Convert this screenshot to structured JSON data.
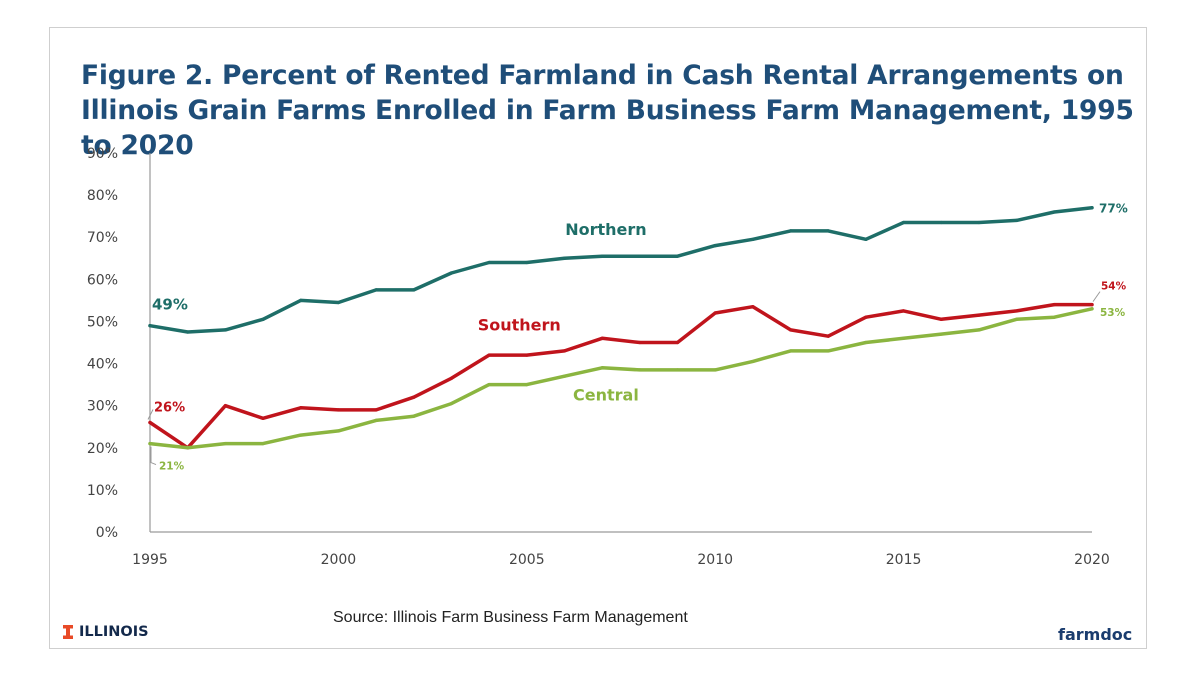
{
  "title": "Figure 2.  Percent of Rented Farmland in Cash Rental Arrangements on Illinois Grain Farms Enrolled in Farm Business Farm Management, 1995 to 2020",
  "source": "Source:  Illinois Farm Business Farm Management",
  "brand_left": "ILLINOIS",
  "brand_right": "farmdoc",
  "colors": {
    "northern": "#1e6e68",
    "southern": "#c0141c",
    "central": "#8bb540",
    "title": "#1f4e79",
    "illinois_orange": "#e84a27"
  },
  "chart_data": {
    "type": "line",
    "title": "Figure 2.  Percent of Rented Farmland in Cash Rental Arrangements on Illinois Grain Farms Enrolled in Farm Business Farm Management, 1995 to 2020",
    "xlabel": "",
    "ylabel": "",
    "x": [
      1995,
      1996,
      1997,
      1998,
      1999,
      2000,
      2001,
      2002,
      2003,
      2004,
      2005,
      2006,
      2007,
      2008,
      2009,
      2010,
      2011,
      2012,
      2013,
      2014,
      2015,
      2016,
      2017,
      2018,
      2019,
      2020
    ],
    "xlim": [
      1995,
      2020
    ],
    "ylim": [
      0,
      90
    ],
    "x_ticks": [
      "1995",
      "2000",
      "2005",
      "2010",
      "2015",
      "2020"
    ],
    "y_ticks": [
      "0%",
      "10%",
      "20%",
      "30%",
      "40%",
      "50%",
      "60%",
      "70%",
      "80%",
      "90%"
    ],
    "grid": false,
    "series": [
      {
        "name": "Northern",
        "color": "#1e6e68",
        "values": [
          49,
          47.5,
          48,
          50.5,
          55,
          54.5,
          57.5,
          57.5,
          61.5,
          64,
          64,
          65,
          65.5,
          65.5,
          65.5,
          68,
          69.5,
          71.5,
          71.5,
          69.5,
          73.5,
          73.5,
          73.5,
          74,
          76,
          77
        ],
        "label_start": "49%",
        "label_end": "77%"
      },
      {
        "name": "Southern",
        "color": "#c0141c",
        "values": [
          26,
          20,
          30,
          27,
          29.5,
          29,
          29,
          32,
          36.5,
          42,
          42,
          43,
          46,
          45,
          45,
          52,
          53.5,
          48,
          46.5,
          51,
          52.5,
          50.5,
          51.5,
          52.5,
          54,
          54
        ],
        "label_start": "26%",
        "label_end": "54%"
      },
      {
        "name": "Central",
        "color": "#8bb540",
        "values": [
          21,
          20,
          21,
          21,
          23,
          24,
          26.5,
          27.5,
          30.5,
          35,
          35,
          37,
          39,
          38.5,
          38.5,
          38.5,
          40.5,
          43,
          43,
          45,
          46,
          47,
          48,
          50.5,
          51,
          53
        ],
        "label_start": "21%",
        "label_end": "53%"
      }
    ]
  }
}
